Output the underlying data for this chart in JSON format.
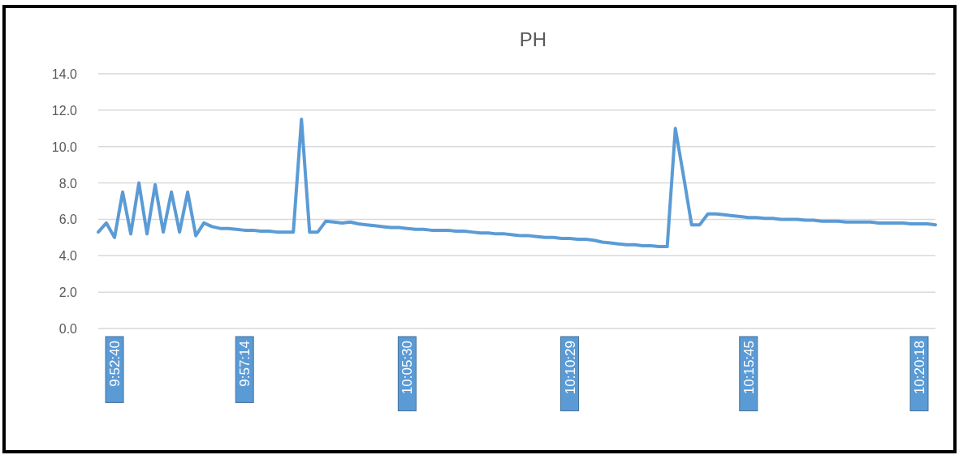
{
  "chart_data": {
    "type": "line",
    "title": "PH",
    "categories": [
      null,
      null,
      "9:52:40",
      null,
      null,
      null,
      null,
      null,
      null,
      null,
      null,
      null,
      null,
      null,
      null,
      null,
      null,
      null,
      "9:57:14",
      null,
      null,
      null,
      null,
      null,
      null,
      null,
      null,
      null,
      null,
      null,
      null,
      null,
      null,
      null,
      null,
      null,
      null,
      null,
      "10:05:30",
      null,
      null,
      null,
      null,
      null,
      null,
      null,
      null,
      null,
      null,
      null,
      null,
      null,
      null,
      null,
      null,
      null,
      null,
      null,
      "10:10:29",
      null,
      null,
      null,
      null,
      null,
      null,
      null,
      null,
      null,
      null,
      null,
      null,
      null,
      null,
      null,
      null,
      null,
      null,
      null,
      null,
      null,
      "10:15:45",
      null,
      null,
      null,
      null,
      null,
      null,
      null,
      null,
      null,
      null,
      null,
      null,
      null,
      null,
      null,
      null,
      null,
      null,
      null,
      null,
      "10:20:18",
      null,
      null
    ],
    "series": [
      {
        "color": "#5b9bd5",
        "values": [
          5.3,
          5.8,
          5.0,
          7.5,
          5.2,
          8.0,
          5.2,
          7.9,
          5.3,
          7.5,
          5.3,
          7.5,
          5.1,
          5.8,
          5.6,
          5.5,
          5.5,
          5.45,
          5.4,
          5.4,
          5.35,
          5.35,
          5.3,
          5.3,
          5.3,
          11.5,
          5.3,
          5.3,
          5.9,
          5.85,
          5.8,
          5.85,
          5.75,
          5.7,
          5.65,
          5.6,
          5.55,
          5.55,
          5.5,
          5.45,
          5.45,
          5.4,
          5.4,
          5.4,
          5.35,
          5.35,
          5.3,
          5.25,
          5.25,
          5.2,
          5.2,
          5.15,
          5.1,
          5.1,
          5.05,
          5.0,
          5.0,
          4.95,
          4.95,
          4.9,
          4.9,
          4.85,
          4.75,
          4.7,
          4.65,
          4.6,
          4.6,
          4.55,
          4.55,
          4.5,
          4.5,
          11.0,
          8.4,
          5.7,
          5.7,
          6.3,
          6.3,
          6.25,
          6.2,
          6.15,
          6.1,
          6.1,
          6.05,
          6.05,
          6.0,
          6.0,
          6.0,
          5.95,
          5.95,
          5.9,
          5.9,
          5.9,
          5.85,
          5.85,
          5.85,
          5.85,
          5.8,
          5.8,
          5.8,
          5.8,
          5.75,
          5.75,
          5.75,
          5.7
        ]
      }
    ],
    "ylim": [
      0,
      14
    ],
    "yticks": [
      {
        "value": 0,
        "label": "0.0"
      },
      {
        "value": 2,
        "label": "2.0"
      },
      {
        "value": 4,
        "label": "4.0"
      },
      {
        "value": 6,
        "label": "6.0"
      },
      {
        "value": 8,
        "label": "8.0"
      },
      {
        "value": 10,
        "label": "10.0"
      },
      {
        "value": 12,
        "label": "12.0"
      },
      {
        "value": 14,
        "label": "14.0"
      }
    ],
    "grid": "y",
    "marker": "none",
    "line_style": "solid"
  }
}
